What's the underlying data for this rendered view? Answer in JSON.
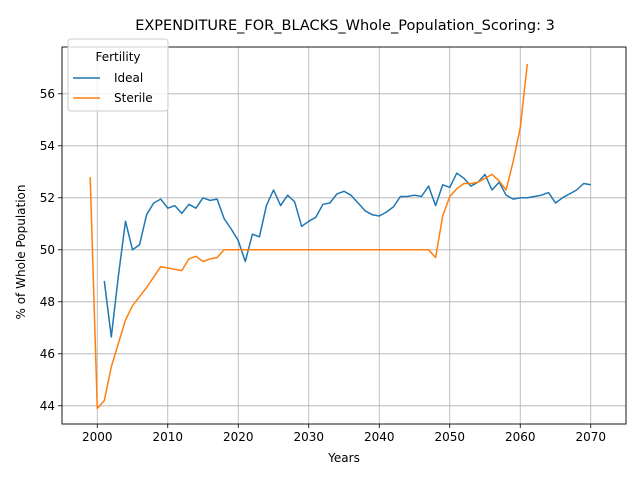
{
  "chart_data": {
    "type": "line",
    "title": "EXPENDITURE_FOR_BLACKS_Whole_Population_Scoring: 3",
    "xlabel": "Years",
    "ylabel": "% of Whole Population",
    "xlim": [
      1995,
      2075
    ],
    "ylim": [
      43.3,
      57.8
    ],
    "xticks": [
      2000,
      2010,
      2020,
      2030,
      2040,
      2050,
      2060,
      2070
    ],
    "yticks": [
      44,
      46,
      48,
      50,
      52,
      54,
      56
    ],
    "grid": true,
    "legend": {
      "title": "Fertility",
      "placement": "top-left"
    },
    "series": [
      {
        "name": "Ideal",
        "color": "#1f77b4",
        "x": [
          2001,
          2002,
          2003,
          2004,
          2005,
          2006,
          2007,
          2008,
          2009,
          2010,
          2011,
          2012,
          2013,
          2014,
          2015,
          2016,
          2017,
          2018,
          2019,
          2020,
          2021,
          2022,
          2023,
          2024,
          2025,
          2026,
          2027,
          2028,
          2029,
          2030,
          2031,
          2032,
          2033,
          2034,
          2035,
          2036,
          2037,
          2038,
          2039,
          2040,
          2041,
          2042,
          2043,
          2044,
          2045,
          2046,
          2047,
          2048,
          2049,
          2050,
          2051,
          2052,
          2053,
          2054,
          2055,
          2056,
          2057,
          2058,
          2059,
          2060,
          2061,
          2062,
          2063,
          2064,
          2065,
          2066,
          2067,
          2068,
          2069,
          2070
        ],
        "values": [
          48.8,
          46.65,
          49.0,
          51.1,
          50.0,
          50.2,
          51.35,
          51.8,
          51.95,
          51.6,
          51.7,
          51.4,
          51.75,
          51.6,
          52.0,
          51.9,
          51.95,
          51.2,
          50.8,
          50.35,
          49.55,
          50.6,
          50.5,
          51.7,
          52.3,
          51.7,
          52.1,
          51.85,
          50.9,
          51.1,
          51.25,
          51.75,
          51.8,
          52.15,
          52.25,
          52.1,
          51.8,
          51.5,
          51.35,
          51.3,
          51.45,
          51.65,
          52.05,
          52.05,
          52.1,
          52.05,
          52.45,
          51.7,
          52.5,
          52.4,
          52.95,
          52.75,
          52.45,
          52.6,
          52.9,
          52.3,
          52.6,
          52.1,
          51.95,
          52.0,
          52.0,
          52.05,
          52.1,
          52.2,
          51.8,
          52.0,
          52.15,
          52.3,
          52.55,
          52.5
        ]
      },
      {
        "name": "Sterile",
        "color": "#ff7f0e",
        "x": [
          1999,
          2000,
          2001,
          2002,
          2003,
          2004,
          2005,
          2006,
          2007,
          2008,
          2009,
          2010,
          2011,
          2012,
          2013,
          2014,
          2015,
          2016,
          2017,
          2018,
          2019,
          2020,
          2021,
          2022,
          2023,
          2024,
          2025,
          2026,
          2027,
          2028,
          2029,
          2030,
          2031,
          2032,
          2033,
          2034,
          2035,
          2036,
          2037,
          2038,
          2039,
          2040,
          2041,
          2042,
          2043,
          2044,
          2045,
          2046,
          2047,
          2048,
          2049,
          2050,
          2051,
          2052,
          2053,
          2054,
          2055,
          2056,
          2057,
          2058,
          2059,
          2060,
          2061
        ],
        "values": [
          52.8,
          43.9,
          44.2,
          45.5,
          46.4,
          47.3,
          47.85,
          48.2,
          48.55,
          48.95,
          49.35,
          49.3,
          49.25,
          49.2,
          49.65,
          49.75,
          49.55,
          49.65,
          49.7,
          50.0,
          50.0,
          50.0,
          50.0,
          50.0,
          50.0,
          50.0,
          50.0,
          50.0,
          50.0,
          50.0,
          50.0,
          50.0,
          50.0,
          50.0,
          50.0,
          50.0,
          50.0,
          50.0,
          50.0,
          50.0,
          50.0,
          50.0,
          50.0,
          50.0,
          50.0,
          50.0,
          50.0,
          50.0,
          50.0,
          49.7,
          51.3,
          52.05,
          52.35,
          52.55,
          52.55,
          52.6,
          52.75,
          52.9,
          52.65,
          52.3,
          53.4,
          54.7,
          57.15
        ]
      }
    ]
  }
}
